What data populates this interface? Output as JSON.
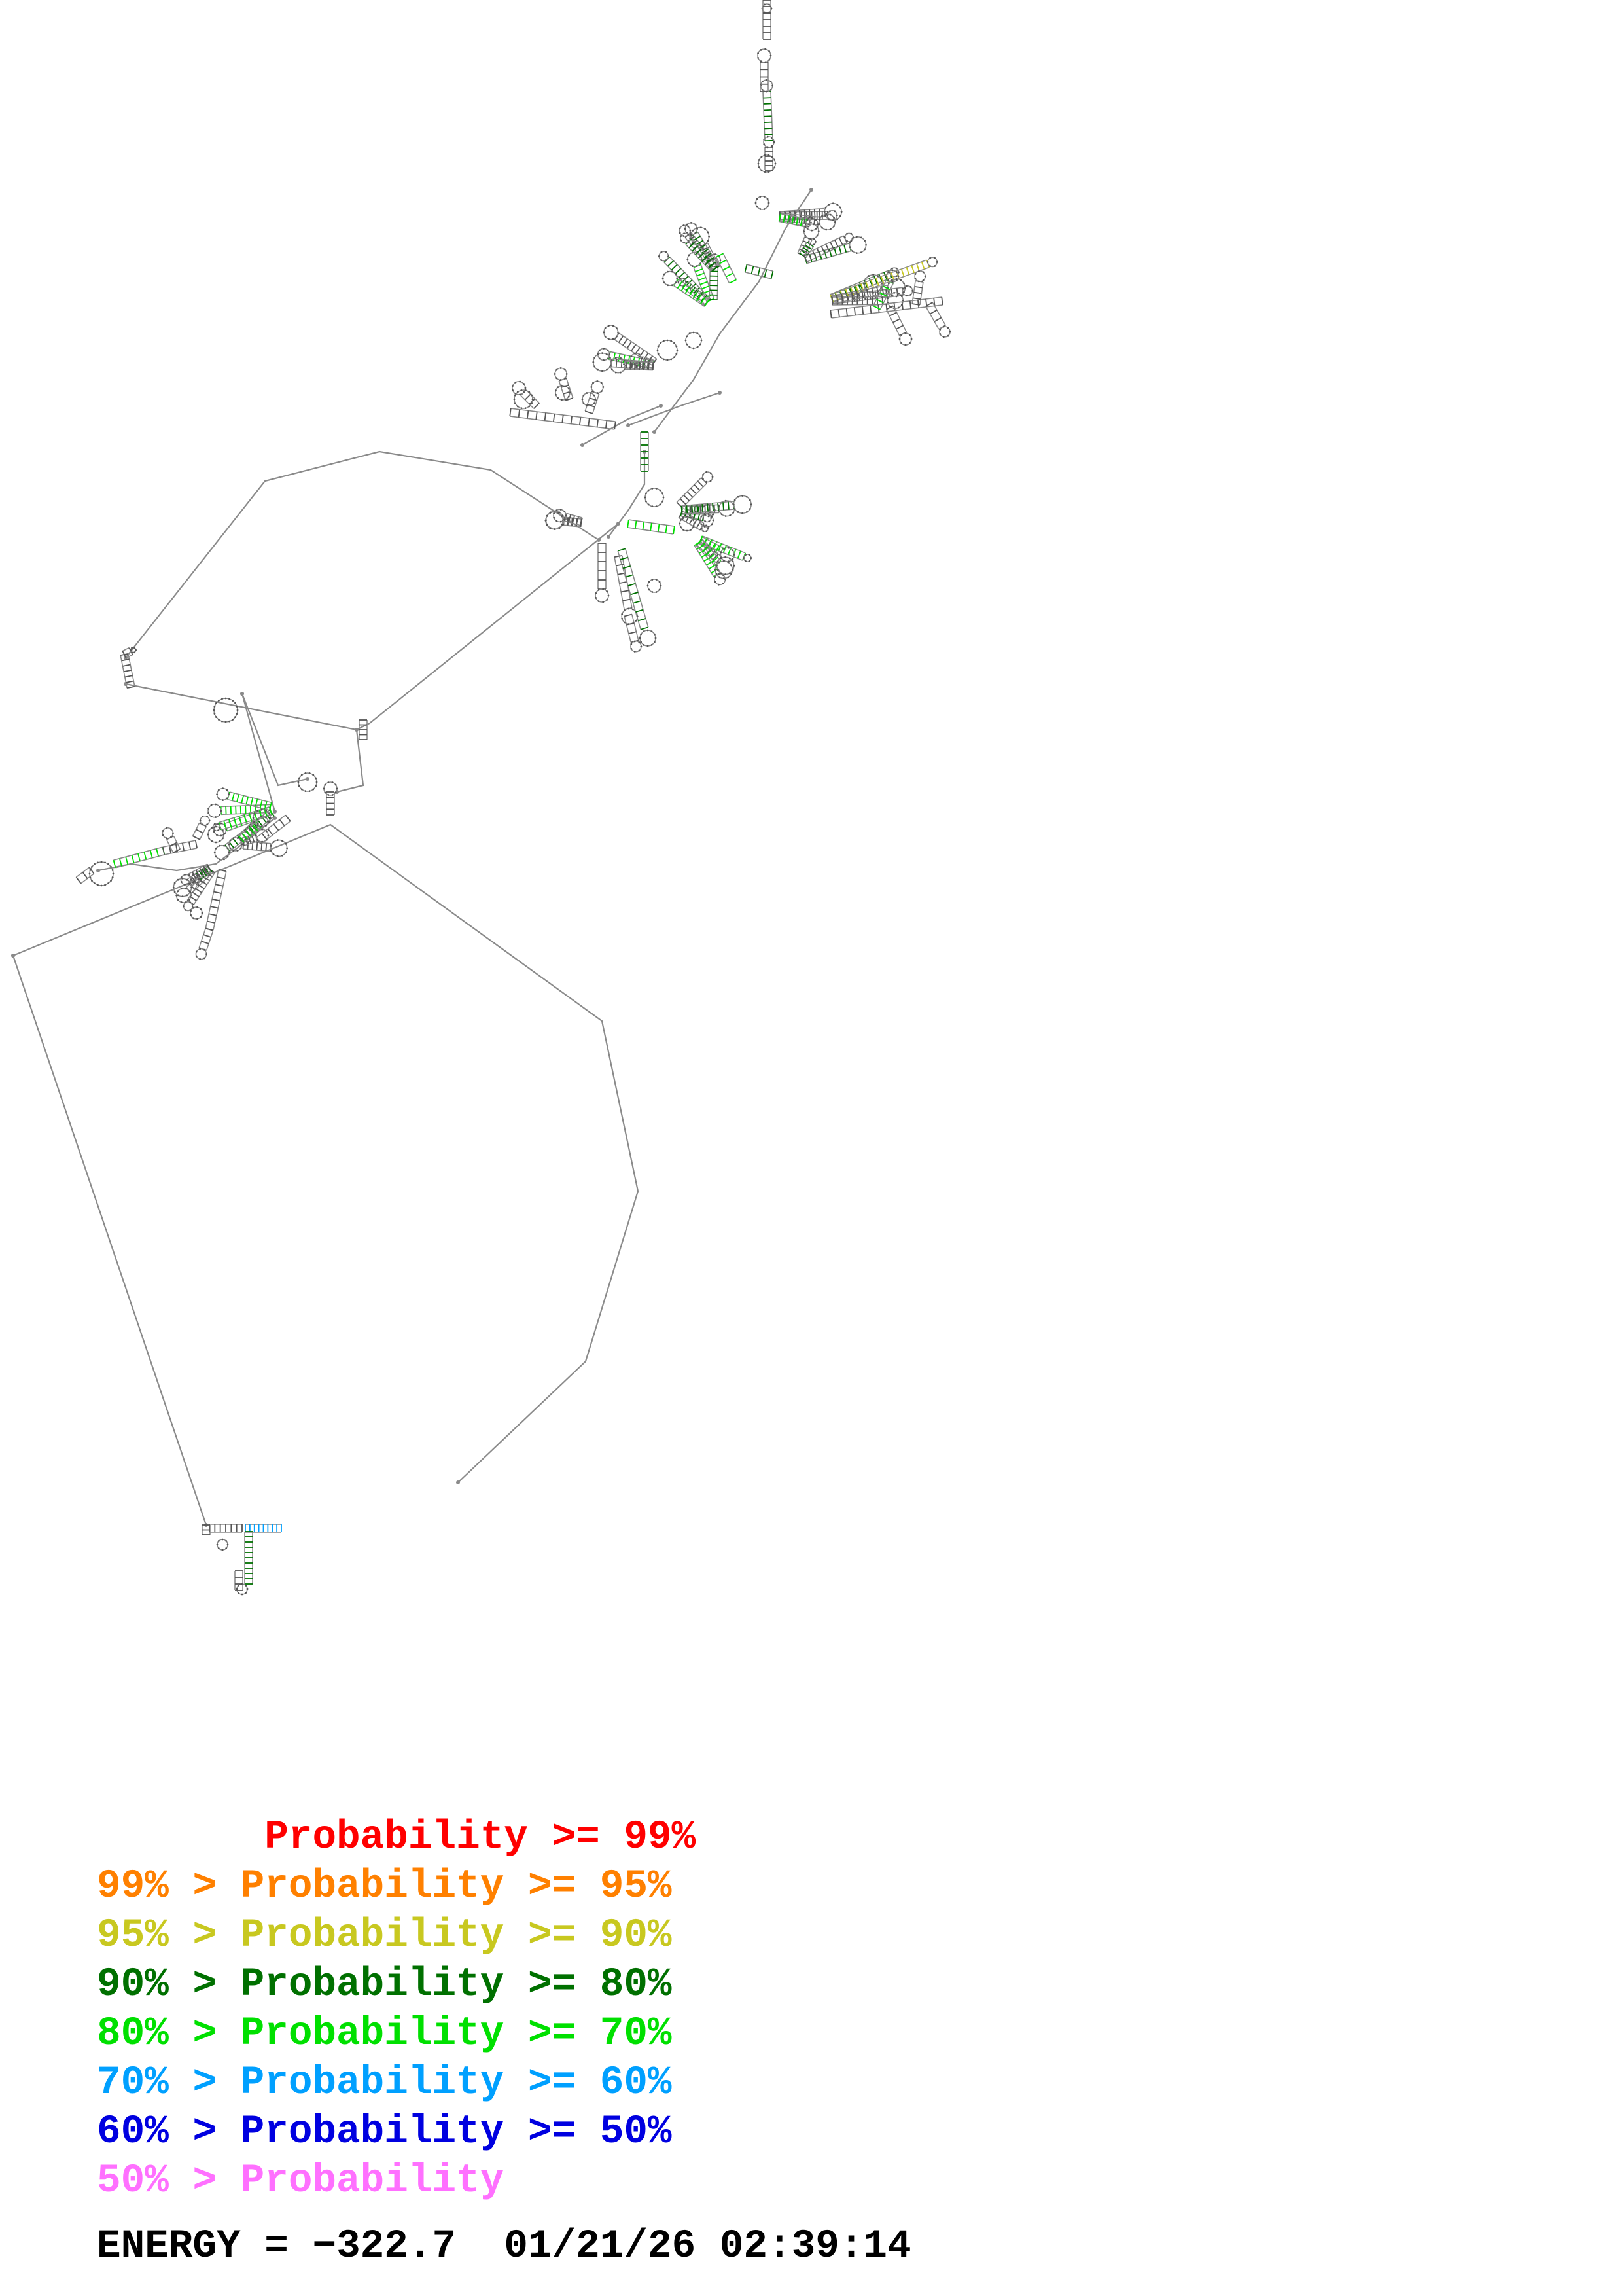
{
  "structure": {
    "backbone_color": "#8a8a8a",
    "base_color": "#555555",
    "pair_colors": [
      "#ff0000",
      "#ff8000",
      "#c8c820",
      "#007000",
      "#00e000",
      "#00a0ff",
      "#0000e0",
      "#ff70ff"
    ]
  },
  "legend": {
    "rows": [
      {
        "text": "       Probability >= 99%",
        "color": "#ff0000"
      },
      {
        "text": "99% > Probability >= 95%",
        "color": "#ff8000"
      },
      {
        "text": "95% > Probability >= 90%",
        "color": "#c8c820"
      },
      {
        "text": "90% > Probability >= 80%",
        "color": "#007000"
      },
      {
        "text": "80% > Probability >= 70%",
        "color": "#00e000"
      },
      {
        "text": "70% > Probability >= 60%",
        "color": "#00a0ff"
      },
      {
        "text": "60% > Probability >= 50%",
        "color": "#0000e0"
      },
      {
        "text": "50% > Probability",
        "color": "#ff70ff"
      }
    ]
  },
  "footer": {
    "energy_label": "ENERGY = ",
    "energy_value": "−322.7",
    "timestamp": "01/21/26 02:39:14"
  }
}
